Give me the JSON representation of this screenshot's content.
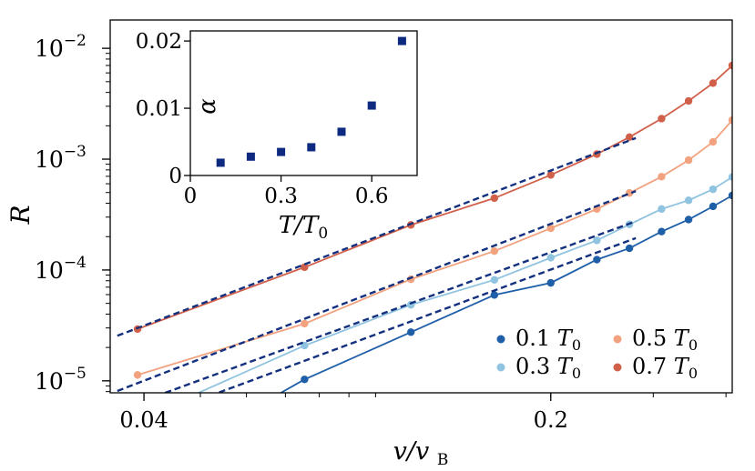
{
  "chart_data": [
    {
      "type": "line",
      "xlabel": "v/vB",
      "ylabel": "R",
      "xscale": "log",
      "yscale": "log",
      "xlim": [
        0.035,
        0.41
      ],
      "ylim": [
        7.8e-06,
        0.018
      ],
      "grid": false,
      "legend_placement": "bottom-right",
      "x_ticks": [
        {
          "value": 0.04,
          "label": "0.04"
        },
        {
          "value": 0.2,
          "label": "0.2"
        }
      ],
      "y_ticks": [
        {
          "value": 1e-05,
          "base": "10",
          "exp": "−5"
        },
        {
          "value": 0.0001,
          "base": "10",
          "exp": "−4"
        },
        {
          "value": 0.001,
          "base": "10",
          "exp": "−3"
        },
        {
          "value": 0.01,
          "base": "10",
          "exp": "−2"
        }
      ],
      "series": [
        {
          "name": "0.1 T0",
          "legend_num": "0.1",
          "legend_sym": "T",
          "legend_sub": "0",
          "color": "#1f5fa8",
          "x": [
            0.0755,
            0.115,
            0.16,
            0.2,
            0.24,
            0.273,
            0.31,
            0.345,
            0.38,
            0.41
          ],
          "y": [
            1.03e-05,
            2.75e-05,
            5.95e-05,
            7.65e-05,
            0.000124,
            0.000157,
            0.000222,
            0.000285,
            0.000375,
            0.00047
          ],
          "fit": {
            "x": [
              0.05,
              0.28
            ],
            "y": [
              6.8e-06,
              0.000194
            ]
          }
        },
        {
          "name": "0.3 T0",
          "legend_num": "0.3",
          "legend_sym": "T",
          "legend_sub": "0",
          "color": "#8fc3e0",
          "x": [
            0.0755,
            0.115,
            0.16,
            0.2,
            0.24,
            0.273,
            0.31,
            0.345,
            0.38,
            0.41
          ],
          "y": [
            2.08e-05,
            4.85e-05,
            8.15e-05,
            0.000129,
            0.000185,
            0.000258,
            0.000355,
            0.000425,
            0.000535,
            0.00069
          ],
          "fit": {
            "x": [
              0.0435,
              0.28
            ],
            "y": [
              7.8e-06,
              0.000275
            ]
          }
        },
        {
          "name": "0.5 T0",
          "legend_num": "0.5",
          "legend_sym": "T",
          "legend_sub": "0",
          "color": "#f2a27e",
          "x": [
            0.039,
            0.0755,
            0.115,
            0.16,
            0.2,
            0.24,
            0.273,
            0.31,
            0.345,
            0.38,
            0.41
          ],
          "y": [
            1.13e-05,
            3.28e-05,
            8.25e-05,
            0.000148,
            0.000238,
            0.000355,
            0.000495,
            0.000695,
            0.00098,
            0.00143,
            0.00225
          ],
          "fit": {
            "x": [
              0.036,
              0.28
            ],
            "y": [
              8.1e-06,
              0.000515
            ]
          }
        },
        {
          "name": "0.7 T0",
          "legend_num": "0.7",
          "legend_sym": "T",
          "legend_sub": "0",
          "color": "#d1604a",
          "x": [
            0.039,
            0.0755,
            0.115,
            0.16,
            0.2,
            0.24,
            0.273,
            0.31,
            0.345,
            0.38,
            0.41
          ],
          "y": [
            2.93e-05,
            0.000106,
            0.000255,
            0.000445,
            0.00072,
            0.00111,
            0.00158,
            0.00232,
            0.00335,
            0.00485,
            0.007
          ],
          "fit": {
            "x": [
              0.036,
              0.28
            ],
            "y": [
              2.55e-05,
              0.00155
            ]
          }
        }
      ]
    },
    {
      "type": "scatter",
      "xlabel": "T/T0",
      "ylabel": "α",
      "xlim": [
        0,
        0.75
      ],
      "ylim": [
        0,
        0.0215
      ],
      "grid": false,
      "marker_color": "#0d2a80",
      "x_ticks": [
        {
          "value": 0,
          "label": "0"
        },
        {
          "value": 0.3,
          "label": "0.3"
        },
        {
          "value": 0.6,
          "label": "0.6"
        }
      ],
      "y_ticks": [
        {
          "value": 0,
          "label": "0"
        },
        {
          "value": 0.01,
          "label": "0.01"
        },
        {
          "value": 0.02,
          "label": "0.02"
        }
      ],
      "x": [
        0.1,
        0.2,
        0.3,
        0.4,
        0.5,
        0.6,
        0.7
      ],
      "y": [
        0.0019,
        0.0028,
        0.0035,
        0.0042,
        0.0065,
        0.0104,
        0.02
      ]
    }
  ]
}
